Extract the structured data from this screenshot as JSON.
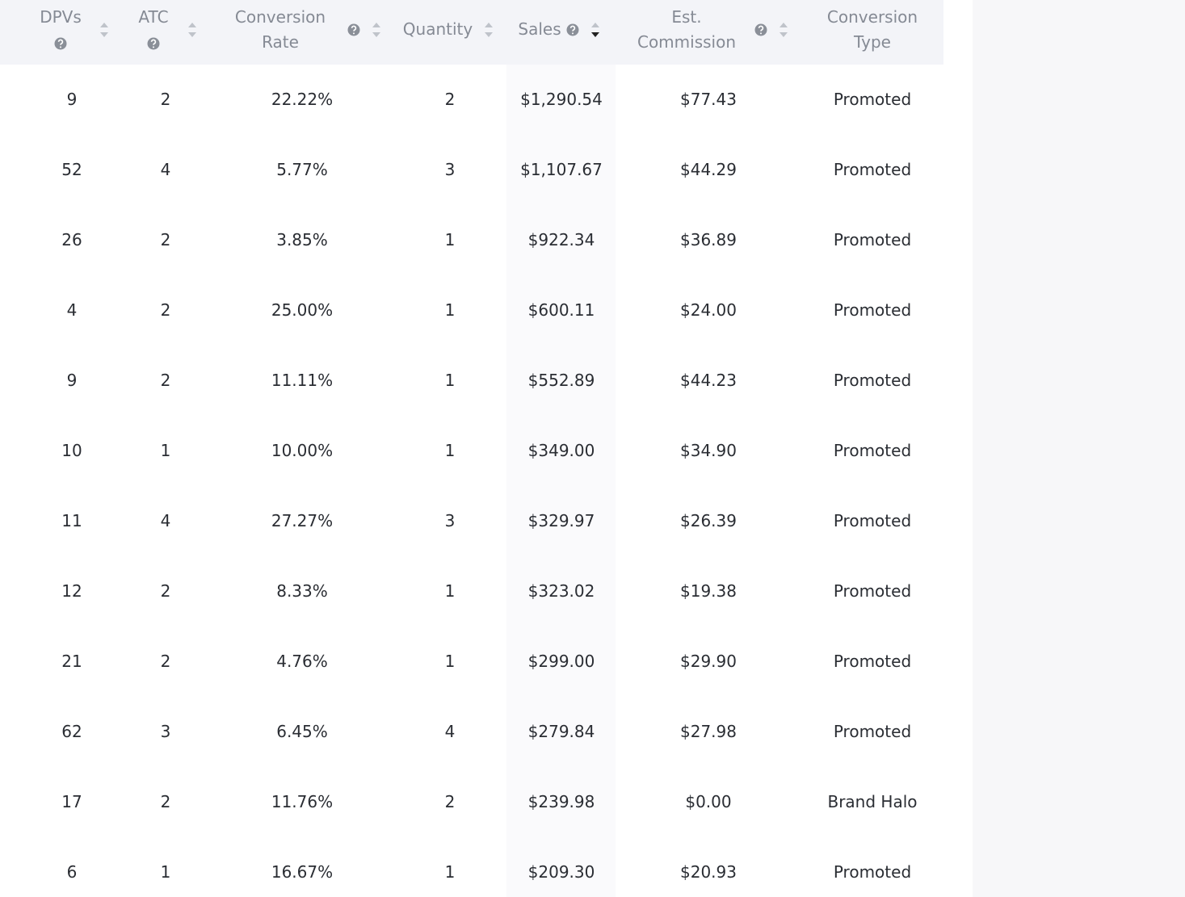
{
  "table": {
    "headers": [
      "DPVs",
      "ATC",
      "Conversion Rate",
      "Quantity",
      "Sales",
      "Est. Commission",
      "Conversion Type"
    ],
    "sorted_column": 4,
    "clipped_cell_text": ")",
    "rows": [
      [
        "9",
        "2",
        "22.22%",
        "2",
        "$1,290.54",
        "$77.43",
        "Promoted"
      ],
      [
        "52",
        "4",
        "5.77%",
        "3",
        "$1,107.67",
        "$44.29",
        "Promoted"
      ],
      [
        "26",
        "2",
        "3.85%",
        "1",
        "$922.34",
        "$36.89",
        "Promoted"
      ],
      [
        "4",
        "2",
        "25.00%",
        "1",
        "$600.11",
        "$24.00",
        "Promoted"
      ],
      [
        "9",
        "2",
        "11.11%",
        "1",
        "$552.89",
        "$44.23",
        "Promoted"
      ],
      [
        "10",
        "1",
        "10.00%",
        "1",
        "$349.00",
        "$34.90",
        "Promoted"
      ],
      [
        "11",
        "4",
        "27.27%",
        "3",
        "$329.97",
        "$26.39",
        "Promoted"
      ],
      [
        "12",
        "2",
        "8.33%",
        "1",
        "$323.02",
        "$19.38",
        "Promoted"
      ],
      [
        "21",
        "2",
        "4.76%",
        "1",
        "$299.00",
        "$29.90",
        "Promoted"
      ],
      [
        "62",
        "3",
        "6.45%",
        "4",
        "$279.84",
        "$27.98",
        "Promoted"
      ],
      [
        "17",
        "2",
        "11.76%",
        "2",
        "$239.98",
        "$0.00",
        "Brand Halo"
      ],
      [
        "6",
        "1",
        "16.67%",
        "1",
        "$209.30",
        "$20.93",
        "Promoted"
      ]
    ]
  }
}
